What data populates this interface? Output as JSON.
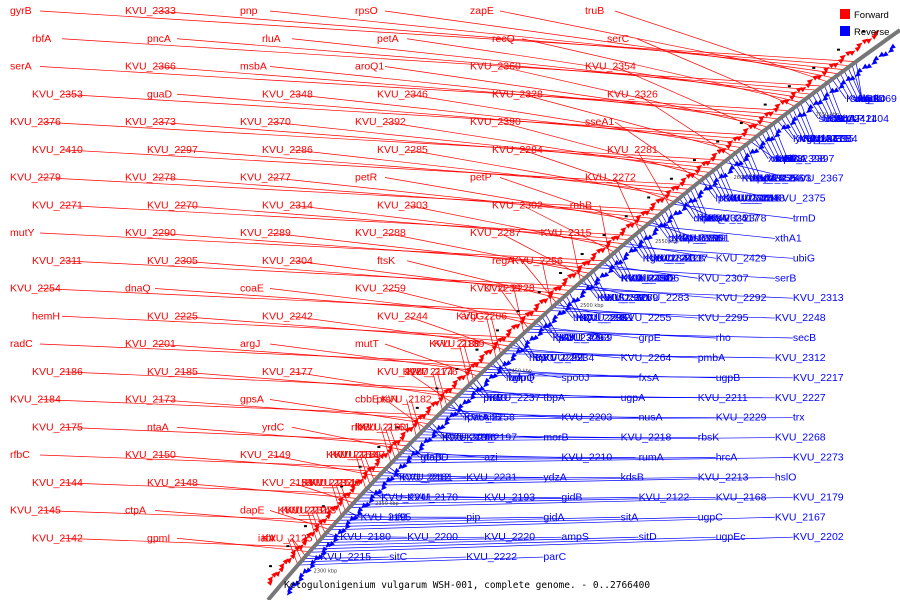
{
  "title": "Ketogulonigenium vulgarum WSH-001, complete genome. - 0..2766400",
  "legend": {
    "forward": "Forward",
    "reverse": "Reverse"
  },
  "colors": {
    "forward": "#ff0000",
    "reverse": "#0000ff",
    "backbone": "#777777"
  },
  "ticks": [
    "2300 kbp",
    "2350 kbp",
    "2400 kbp",
    "2450 kbp",
    "2500 kbp",
    "2550 kbp",
    "2600 kbp",
    "2650 kbp"
  ],
  "forward_labels": [
    "gyrB",
    "KVU_2333",
    "pnp",
    "rpsO",
    "zapE",
    "truB",
    "rbfA",
    "pncA",
    "rluA",
    "petA",
    "recQ",
    "serC",
    "serA",
    "KVU_2366",
    "msbA",
    "aroQ1",
    "KVU_2360",
    "KVU_2354",
    "KVU_2353",
    "guaD",
    "KVU_2348",
    "KVU_2346",
    "KVU_2328",
    "KVU_2326",
    "KVU_2376",
    "KVU_2373",
    "KVU_2370",
    "KVU_2392",
    "KVU_2390",
    "sseA1",
    "KVU_2410",
    "KVU_2297",
    "KVU_2286",
    "KVU_2285",
    "KVU_2284",
    "KVU_2281",
    "KVU_2279",
    "KVU_2278",
    "KVU_2277",
    "petR",
    "petP",
    "KVU_2272",
    "KVU_2271",
    "KVU_2270",
    "KVU_2314",
    "KVU_2303",
    "KVU_2302",
    "rnhB",
    "mutY",
    "KVU_2290",
    "KVU_2289",
    "KVU_2288",
    "KVU_2287",
    "KVU_2315",
    "KVU_2311",
    "KVU_2305",
    "KVU_2304",
    "ftsK",
    "regA",
    "KVU_2256",
    "KVU_2254",
    "dnaQ",
    "coaE",
    "KVU_2259",
    "KVU_2233",
    "KVU_2228",
    "hemH",
    "KVU_2225",
    "KVU_2242",
    "KVU_2244",
    "argG",
    "KVU_2206",
    "radC",
    "KVU_2201",
    "argJ",
    "mutT",
    "KVU_2189",
    "KVU_2188",
    "KVU_2186",
    "KVU_2185",
    "KVU_2177",
    "KVU_2187",
    "KVU_2176",
    "KVU_2174",
    "KVU_2184",
    "KVU_2173",
    "gpsA",
    "cbbE",
    "KVU_2182",
    "ptsN",
    "KVU_2175",
    "ntaA",
    "yrdC",
    "KVU_2161",
    "KVU_2160",
    "rfbB",
    "rfbC",
    "KVU_2150",
    "KVU_2149",
    "KVU_2147",
    "KVU_2159",
    "KVU_2154",
    "KVU_2144",
    "KVU_2148",
    "KVU_2153",
    "KVU_2146",
    "KVU_2151",
    "KVU_2132",
    "KVU_2145",
    "ctpA",
    "dapE",
    "KVU_2143",
    "KVU_2127",
    "KVU_2131",
    "KVU_2142",
    "gpmI",
    "rnr",
    "KVU_2125",
    "ialA"
  ],
  "reverse_labels": [
    "lguL",
    "mdh",
    "sucD",
    "fabB",
    "ada",
    "sucB",
    "KVU_2469",
    "rpsP",
    "KVU_2404",
    "fabA",
    "sucC",
    "KVU_2411",
    "fdcB",
    "sucA",
    "rpmE",
    "lpdA",
    "KVU_2384",
    "KVU_2395",
    "KVU_2415",
    "y4gN",
    "KVU_2377",
    "rfbA",
    "KVU_2397",
    "rplS",
    "fabI-3",
    "noeK",
    "xanB",
    "KVU_2398",
    "KVU_2403",
    "pdhR",
    "KVU_2356",
    "mepA",
    "KVU_2355",
    "KVU_2347",
    "KVU_2367",
    "KVU_2448",
    "KVU_2416",
    "KVU_2324",
    "KVU_2323",
    "KVU_2340",
    "lpcA",
    "KVU_2375",
    "KVU_2417",
    "kdsA",
    "lpxQ",
    "KVU_2335",
    "dinB",
    "KVU_2378",
    "trmD",
    "kpsE",
    "KVU_2301",
    "KVU_2319",
    "KVU_2336",
    "pyrF",
    "rimM",
    "xthA1",
    "KVU_2337",
    "KVU_2428",
    "grxC",
    "KVU_2291",
    "KVU_2341",
    "KVU_2429",
    "ubiG",
    "ubiH",
    "KVU_2306",
    "KVU_2342",
    "KVU_2430",
    "KVU_2282",
    "KVU_2307",
    "serB",
    "KVU_2269",
    "leuS",
    "KVU_2321",
    "KVU_2350",
    "KVU_2283",
    "KVU_2292",
    "KVU_2313",
    "KVU_2351",
    "KVU_2262",
    "KVU_2293",
    "thiQ",
    "KVU_2255",
    "KVU_2295",
    "KVU_2248",
    "KVU_2263",
    "lpxK",
    "KVU_2309",
    "KVU_2169",
    "grpE",
    "rho",
    "secB",
    "KVU_2261",
    "KVU_2299",
    "hup",
    "KVU_2234",
    "KVU_2264",
    "pmbA",
    "KVU_2312",
    "glpQ",
    "comF",
    "ilvA",
    "spo0J",
    "fxsA",
    "ugpB",
    "KVU_2217",
    "KVU_2237",
    "hslU",
    "prrB",
    "tbpA",
    "ugpA",
    "KVU_2211",
    "KVU_2227",
    "parA",
    "KVU_2258",
    "sitB",
    "KVU_2203",
    "nusA",
    "KVU_2229",
    "trx",
    "KVU_2266",
    "KVU_2138",
    "KVU_2197",
    "morB",
    "KVU_2218",
    "rbsK",
    "KVU_2268",
    "dapD",
    "gtaB",
    "azi",
    "KVU_2210",
    "rumA",
    "hrcA",
    "KVU_2273",
    "KVU_2181",
    "KVU_2212",
    "KVU_2231",
    "ydzA",
    "kdsB",
    "KVU_2213",
    "hslO",
    "KVU_2241",
    "KVU_2170",
    "KVU_2193",
    "gidB",
    "KVU_2122",
    "KVU_2168",
    "KVU_2179",
    "KVU_2195",
    "infB",
    "pip",
    "gidA",
    "sitA",
    "ugpC",
    "KVU_2167",
    "KVU_2180",
    "KVU_2200",
    "KVU_2220",
    "ampS",
    "sitD",
    "ugpEc",
    "KVU_2202",
    "KVU_2215",
    "sitC",
    "KVU_2222",
    "parC"
  ]
}
